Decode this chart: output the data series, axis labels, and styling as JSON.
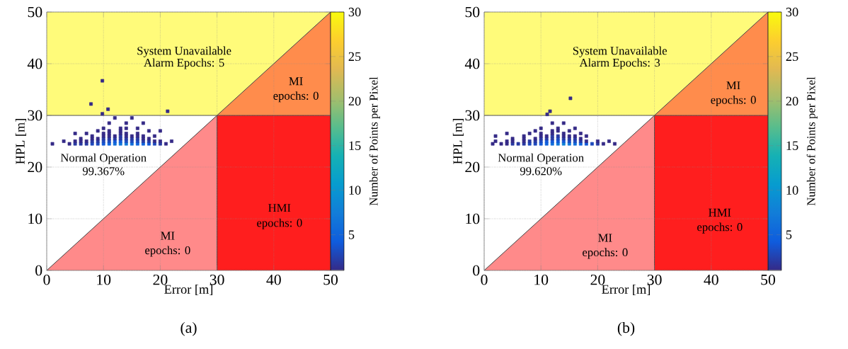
{
  "chart_data": [
    {
      "type": "scatter",
      "xlabel": "Error [m]",
      "ylabel": "HPL [m]",
      "clabel": "Number of Points per Pixel",
      "xlim": [
        0,
        50
      ],
      "ylim": [
        0,
        50
      ],
      "xticks": [
        0,
        10,
        20,
        30,
        40,
        50
      ],
      "yticks": [
        0,
        10,
        20,
        30,
        40,
        50
      ],
      "clim": [
        1,
        30
      ],
      "cticks": [
        5,
        10,
        15,
        20,
        25,
        30
      ],
      "grid": true,
      "series": [
        {
          "type": "line",
          "color": "#fffb7a",
          "x": [
            0,
            30,
            50
          ],
          "values": [
            null,
            null,
            null
          ],
          "lower": [
            30,
            30,
            50
          ],
          "upper": [
            50,
            50,
            50
          ]
        },
        {
          "type": "line",
          "color": "#ff8c4c",
          "x": [
            30,
            50
          ],
          "values": [
            null,
            null
          ],
          "lower": [
            30,
            30
          ],
          "upper": [
            30,
            50
          ]
        },
        {
          "type": "line",
          "color": "#ff1e1e",
          "x": [
            30,
            50
          ],
          "values": [
            null,
            null
          ],
          "lower": [
            0,
            0
          ],
          "upper": [
            30,
            30
          ]
        },
        {
          "type": "line",
          "color": "#ff8a8a",
          "x": [
            0,
            30
          ],
          "values": [
            null,
            null
          ],
          "lower": [
            0,
            0
          ],
          "upper": [
            0,
            30
          ]
        },
        {
          "type": "line",
          "color": "#404040",
          "x": [
            0,
            50
          ],
          "values": [
            0,
            50
          ]
        },
        {
          "type": "line",
          "color": "#404040",
          "x": [
            0,
            50
          ],
          "values": [
            30,
            30
          ]
        },
        {
          "type": "line",
          "color": "#404040",
          "x": [
            30,
            30
          ],
          "values": [
            0,
            30
          ]
        },
        {
          "marker": "square",
          "x": [
            9.8,
            7.8,
            10.8,
            9.8,
            21.3,
            1,
            4,
            5,
            6,
            7,
            8,
            9,
            10,
            11,
            12,
            13,
            14,
            15,
            16,
            17,
            18,
            19,
            20,
            21,
            3,
            5,
            6,
            7,
            8,
            9,
            10,
            11,
            12,
            13,
            14,
            15,
            16,
            17,
            18,
            19,
            20,
            22,
            6,
            8,
            9,
            10,
            11,
            12,
            13,
            14,
            15,
            16,
            17,
            18,
            8,
            10,
            11,
            12,
            13,
            14,
            15,
            16,
            17,
            19,
            5,
            7,
            10,
            11,
            13,
            14,
            16,
            9,
            11,
            13,
            18,
            20,
            10,
            13,
            14,
            16,
            11,
            14,
            17,
            12,
            15
          ],
          "values": [
            36.7,
            32.2,
            31.2,
            30.3,
            30.8,
            24.5,
            24.5,
            24.5,
            24.5,
            24.5,
            24.5,
            24.5,
            24.5,
            24.5,
            24.5,
            24.5,
            24.5,
            24.5,
            24.5,
            24.5,
            24.5,
            24.5,
            24.5,
            24.5,
            25,
            25,
            25,
            25,
            25,
            25,
            25,
            25,
            25,
            25,
            25,
            25,
            25,
            25,
            25,
            25,
            25,
            25,
            25.5,
            25.5,
            25.5,
            25.5,
            25.5,
            25.5,
            25.5,
            25.5,
            25.5,
            25.5,
            25.5,
            25.5,
            26,
            26,
            26,
            26,
            26,
            26,
            26,
            26,
            26,
            26,
            26.5,
            26.5,
            26.5,
            26.5,
            26.5,
            26.5,
            26.5,
            27,
            27,
            27,
            27,
            27,
            27.5,
            27.5,
            27.5,
            27.5,
            28.5,
            28.5,
            28.5,
            29.5,
            29.5
          ],
          "colors": [
            "#352a87",
            "#352a87",
            "#352a87",
            "#352a87",
            "#352a87",
            "#352a87",
            "#352a87",
            "#293aa2",
            "#293aa2",
            "#293aa2",
            "#1d49bc",
            "#1d49bc",
            "#1258d7",
            "#1064dc",
            "#116eda",
            "#1277d9",
            "#1277d9",
            "#116eda",
            "#1064dc",
            "#1064dc",
            "#1258d7",
            "#1d49bc",
            "#293aa2",
            "#352a87",
            "#352a87",
            "#352a87",
            "#352a87",
            "#352a87",
            "#293aa2",
            "#293aa2",
            "#1d49bc",
            "#1d49bc",
            "#1258d7",
            "#1258d7",
            "#1d49bc",
            "#1d49bc",
            "#1d49bc",
            "#293aa2",
            "#293aa2",
            "#352a87",
            "#352a87",
            "#352a87",
            "#352a87",
            "#352a87",
            "#352a87",
            "#293aa2",
            "#293aa2",
            "#293aa2",
            "#293aa2",
            "#293aa2",
            "#293aa2",
            "#293aa2",
            "#352a87",
            "#352a87",
            "#352a87",
            "#352a87",
            "#352a87",
            "#352a87",
            "#293aa2",
            "#352a87",
            "#352a87",
            "#352a87",
            "#352a87",
            "#352a87",
            "#352a87",
            "#352a87",
            "#352a87",
            "#352a87",
            "#352a87",
            "#352a87",
            "#352a87",
            "#352a87",
            "#352a87",
            "#352a87",
            "#352a87",
            "#352a87",
            "#352a87",
            "#352a87",
            "#352a87",
            "#352a87",
            "#352a87",
            "#352a87",
            "#352a87",
            "#352a87",
            "#352a87"
          ],
          "cvalues": [
            1,
            1,
            1,
            1,
            1,
            1,
            1,
            2,
            2,
            2,
            3,
            3,
            4,
            5,
            6,
            7,
            7,
            6,
            5,
            5,
            4,
            3,
            2,
            1,
            1,
            1,
            1,
            1,
            2,
            2,
            3,
            3,
            4,
            4,
            3,
            3,
            3,
            2,
            2,
            1,
            1,
            1,
            1,
            1,
            1,
            2,
            2,
            2,
            2,
            2,
            2,
            2,
            1,
            1,
            1,
            1,
            1,
            1,
            2,
            1,
            1,
            1,
            1,
            1,
            1,
            1,
            1,
            1,
            1,
            1,
            1,
            1,
            1,
            1,
            1,
            1,
            1,
            1,
            1,
            1,
            1,
            1,
            1,
            1,
            1
          ]
        }
      ],
      "annotations": [
        "System Unavailable",
        "Alarm Epochs: 5",
        "MI",
        "epochs: 0",
        "Normal Operation",
        "99.367%",
        "HMI",
        "epochs: 0",
        "MI",
        "epochs: 0",
        "(a)"
      ]
    },
    {
      "type": "scatter",
      "xlabel": "Error [m]",
      "ylabel": "HPL [m]",
      "clabel": "Number of Points per Pixel",
      "xlim": [
        0,
        50
      ],
      "ylim": [
        0,
        50
      ],
      "xticks": [
        0,
        10,
        20,
        30,
        40,
        50
      ],
      "yticks": [
        0,
        10,
        20,
        30,
        40,
        50
      ],
      "clim": [
        1,
        30
      ],
      "cticks": [
        5,
        10,
        15,
        20,
        25,
        30
      ],
      "grid": true,
      "series": [
        {
          "type": "line",
          "color": "#fffb7a",
          "x": [
            0,
            30,
            50
          ],
          "values": [
            null,
            null,
            null
          ],
          "lower": [
            30,
            30,
            50
          ],
          "upper": [
            50,
            50,
            50
          ]
        },
        {
          "type": "line",
          "color": "#ff8c4c",
          "x": [
            30,
            50
          ],
          "values": [
            null,
            null
          ],
          "lower": [
            30,
            30
          ],
          "upper": [
            30,
            50
          ]
        },
        {
          "type": "line",
          "color": "#ff1e1e",
          "x": [
            30,
            50
          ],
          "values": [
            null,
            null
          ],
          "lower": [
            0,
            0
          ],
          "upper": [
            30,
            30
          ]
        },
        {
          "type": "line",
          "color": "#ff8a8a",
          "x": [
            0,
            30
          ],
          "values": [
            null,
            null
          ],
          "lower": [
            0,
            0
          ],
          "upper": [
            0,
            30
          ]
        },
        {
          "type": "line",
          "color": "#404040",
          "x": [
            0,
            50
          ],
          "values": [
            0,
            50
          ]
        },
        {
          "type": "line",
          "color": "#404040",
          "x": [
            0,
            50
          ],
          "values": [
            30,
            30
          ]
        },
        {
          "type": "line",
          "color": "#404040",
          "x": [
            30,
            30
          ],
          "values": [
            0,
            30
          ]
        },
        {
          "marker": "square",
          "x": [
            15.2,
            11.6,
            11.1,
            1.5,
            3,
            4,
            5,
            6,
            7,
            8,
            9,
            10,
            11,
            12,
            13,
            14,
            15,
            16,
            17,
            18,
            19,
            20,
            21,
            23,
            2,
            4,
            5,
            7,
            8,
            9,
            10,
            11,
            12,
            13,
            14,
            15,
            16,
            17,
            18,
            20,
            22,
            5,
            7,
            9,
            10,
            11,
            12,
            13,
            14,
            15,
            16,
            17,
            2,
            7,
            10,
            11,
            12,
            13,
            14,
            15,
            16,
            18,
            4,
            8,
            10,
            12,
            14,
            17,
            9,
            12,
            13,
            15,
            10,
            13,
            16,
            12,
            14
          ],
          "values": [
            33.3,
            30.8,
            30.2,
            24.5,
            24.5,
            24.5,
            24.5,
            24.5,
            24.5,
            24.5,
            24.5,
            24.5,
            24.5,
            24.5,
            24.5,
            24.5,
            24.5,
            24.5,
            24.5,
            24.5,
            24.5,
            24.5,
            24.5,
            24.5,
            25,
            25,
            25,
            25,
            25,
            25,
            25,
            25,
            25,
            25,
            25,
            25,
            25,
            25,
            25,
            25,
            25,
            25.5,
            25.5,
            25.5,
            25.5,
            25.5,
            25.5,
            25.5,
            25.5,
            25.5,
            25.5,
            25.5,
            26,
            26,
            26,
            26,
            26,
            26,
            26,
            26,
            26,
            26,
            26.5,
            26.5,
            26.5,
            26.5,
            26.5,
            26.5,
            27,
            27,
            27,
            27,
            27.5,
            27.5,
            27.5,
            28.5,
            28.5
          ],
          "colors": [
            "#352a87",
            "#352a87",
            "#352a87",
            "#352a87",
            "#352a87",
            "#352a87",
            "#293aa2",
            "#293aa2",
            "#293aa2",
            "#1d49bc",
            "#1d49bc",
            "#1258d7",
            "#1064dc",
            "#116eda",
            "#1277d9",
            "#1082d6",
            "#1277d9",
            "#116eda",
            "#1064dc",
            "#1258d7",
            "#1d49bc",
            "#293aa2",
            "#352a87",
            "#352a87",
            "#352a87",
            "#352a87",
            "#352a87",
            "#352a87",
            "#293aa2",
            "#293aa2",
            "#1d49bc",
            "#1258d7",
            "#1258d7",
            "#1258d7",
            "#1258d7",
            "#1d49bc",
            "#1d49bc",
            "#293aa2",
            "#352a87",
            "#352a87",
            "#352a87",
            "#352a87",
            "#352a87",
            "#352a87",
            "#293aa2",
            "#293aa2",
            "#293aa2",
            "#1d49bc",
            "#293aa2",
            "#293aa2",
            "#293aa2",
            "#352a87",
            "#352a87",
            "#352a87",
            "#352a87",
            "#352a87",
            "#293aa2",
            "#293aa2",
            "#352a87",
            "#352a87",
            "#352a87",
            "#352a87",
            "#352a87",
            "#352a87",
            "#352a87",
            "#352a87",
            "#352a87",
            "#352a87",
            "#352a87",
            "#352a87",
            "#352a87",
            "#352a87",
            "#352a87",
            "#352a87",
            "#352a87",
            "#352a87",
            "#352a87"
          ],
          "cvalues": [
            1,
            1,
            1,
            1,
            1,
            1,
            2,
            2,
            2,
            3,
            3,
            4,
            5,
            6,
            7,
            8,
            7,
            6,
            5,
            4,
            3,
            2,
            1,
            1,
            1,
            1,
            1,
            1,
            2,
            2,
            3,
            4,
            4,
            4,
            4,
            3,
            3,
            2,
            1,
            1,
            1,
            1,
            1,
            1,
            2,
            2,
            2,
            3,
            2,
            2,
            2,
            1,
            1,
            1,
            1,
            1,
            2,
            2,
            1,
            1,
            1,
            1,
            1,
            1,
            1,
            1,
            1,
            1,
            1,
            1,
            1,
            1,
            1,
            1,
            1,
            1,
            1
          ]
        }
      ],
      "annotations": [
        "System Unavailable",
        "Alarm Epochs: 3",
        "MI",
        "epochs: 0",
        "Normal Operation",
        "99.620%",
        "HMI",
        "epochs: 0",
        "MI",
        "epochs: 0",
        "(b)"
      ]
    }
  ]
}
